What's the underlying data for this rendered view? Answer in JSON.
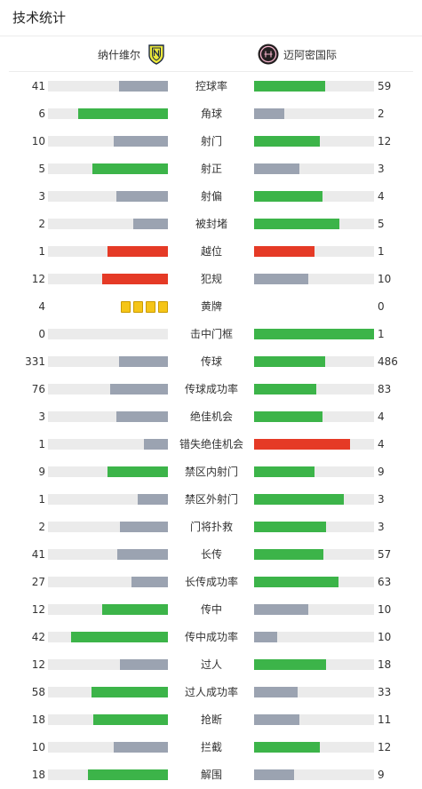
{
  "title": "技术统计",
  "home_team": {
    "name": "纳什维尔",
    "logo": "nashville-sc-crest-icon"
  },
  "away_team": {
    "name": "迈阿密国际",
    "logo": "inter-miami-crest-icon"
  },
  "colors": {
    "green": "#3cb449",
    "gray": "#9ba3b1",
    "red": "#e53a26",
    "track": "#ebebeb",
    "yellow": "#f5c518"
  },
  "stats": [
    {
      "label": "控球率",
      "home": "41",
      "away": "59",
      "home_fill": 0.41,
      "away_fill": 0.59,
      "home_color": "gray",
      "away_color": "green"
    },
    {
      "label": "角球",
      "home": "6",
      "away": "2",
      "home_fill": 0.75,
      "away_fill": 0.25,
      "home_color": "green",
      "away_color": "gray"
    },
    {
      "label": "射门",
      "home": "10",
      "away": "12",
      "home_fill": 0.45,
      "away_fill": 0.55,
      "home_color": "gray",
      "away_color": "green"
    },
    {
      "label": "射正",
      "home": "5",
      "away": "3",
      "home_fill": 0.63,
      "away_fill": 0.38,
      "home_color": "green",
      "away_color": "gray"
    },
    {
      "label": "射偏",
      "home": "3",
      "away": "4",
      "home_fill": 0.43,
      "away_fill": 0.57,
      "home_color": "gray",
      "away_color": "green"
    },
    {
      "label": "被封堵",
      "home": "2",
      "away": "5",
      "home_fill": 0.29,
      "away_fill": 0.71,
      "home_color": "gray",
      "away_color": "green"
    },
    {
      "label": "越位",
      "home": "1",
      "away": "1",
      "home_fill": 0.5,
      "away_fill": 0.5,
      "home_color": "red",
      "away_color": "red"
    },
    {
      "label": "犯规",
      "home": "12",
      "away": "10",
      "home_fill": 0.55,
      "away_fill": 0.45,
      "home_color": "red",
      "away_color": "gray"
    },
    {
      "label": "黄牌",
      "home": "4",
      "away": "0",
      "home_cards": 4
    },
    {
      "label": "击中门框",
      "home": "0",
      "away": "1",
      "home_fill": 0,
      "away_fill": 1,
      "home_color": "gray",
      "away_color": "green"
    },
    {
      "label": "传球",
      "home": "331",
      "away": "486",
      "home_fill": 0.41,
      "away_fill": 0.59,
      "home_color": "gray",
      "away_color": "green"
    },
    {
      "label": "传球成功率",
      "home": "76",
      "away": "83",
      "home_fill": 0.48,
      "away_fill": 0.52,
      "home_color": "gray",
      "away_color": "green"
    },
    {
      "label": "绝佳机会",
      "home": "3",
      "away": "4",
      "home_fill": 0.43,
      "away_fill": 0.57,
      "home_color": "gray",
      "away_color": "green"
    },
    {
      "label": "错失绝佳机会",
      "home": "1",
      "away": "4",
      "home_fill": 0.2,
      "away_fill": 0.8,
      "home_color": "gray",
      "away_color": "red"
    },
    {
      "label": "禁区内射门",
      "home": "9",
      "away": "9",
      "home_fill": 0.5,
      "away_fill": 0.5,
      "home_color": "green",
      "away_color": "green"
    },
    {
      "label": "禁区外射门",
      "home": "1",
      "away": "3",
      "home_fill": 0.25,
      "away_fill": 0.75,
      "home_color": "gray",
      "away_color": "green"
    },
    {
      "label": "门将扑救",
      "home": "2",
      "away": "3",
      "home_fill": 0.4,
      "away_fill": 0.6,
      "home_color": "gray",
      "away_color": "green"
    },
    {
      "label": "长传",
      "home": "41",
      "away": "57",
      "home_fill": 0.42,
      "away_fill": 0.58,
      "home_color": "gray",
      "away_color": "green"
    },
    {
      "label": "长传成功率",
      "home": "27",
      "away": "63",
      "home_fill": 0.3,
      "away_fill": 0.7,
      "home_color": "gray",
      "away_color": "green"
    },
    {
      "label": "传中",
      "home": "12",
      "away": "10",
      "home_fill": 0.55,
      "away_fill": 0.45,
      "home_color": "green",
      "away_color": "gray"
    },
    {
      "label": "传中成功率",
      "home": "42",
      "away": "10",
      "home_fill": 0.81,
      "away_fill": 0.19,
      "home_color": "green",
      "away_color": "gray"
    },
    {
      "label": "过人",
      "home": "12",
      "away": "18",
      "home_fill": 0.4,
      "away_fill": 0.6,
      "home_color": "gray",
      "away_color": "green"
    },
    {
      "label": "过人成功率",
      "home": "58",
      "away": "33",
      "home_fill": 0.64,
      "away_fill": 0.36,
      "home_color": "green",
      "away_color": "gray"
    },
    {
      "label": "抢断",
      "home": "18",
      "away": "11",
      "home_fill": 0.62,
      "away_fill": 0.38,
      "home_color": "green",
      "away_color": "gray"
    },
    {
      "label": "拦截",
      "home": "10",
      "away": "12",
      "home_fill": 0.45,
      "away_fill": 0.55,
      "home_color": "gray",
      "away_color": "green"
    },
    {
      "label": "解围",
      "home": "18",
      "away": "9",
      "home_fill": 0.67,
      "away_fill": 0.33,
      "home_color": "green",
      "away_color": "gray"
    }
  ]
}
